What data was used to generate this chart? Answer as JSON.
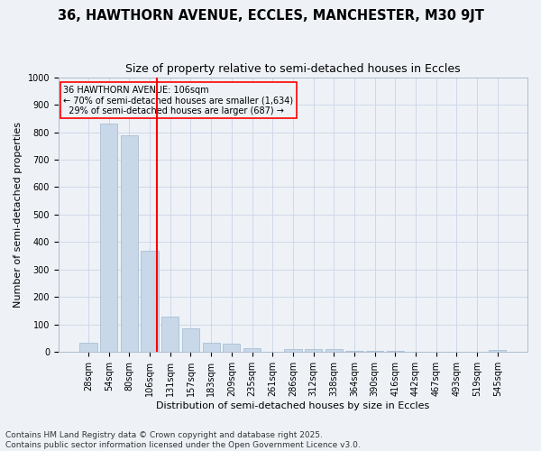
{
  "title": "36, HAWTHORN AVENUE, ECCLES, MANCHESTER, M30 9JT",
  "subtitle": "Size of property relative to semi-detached houses in Eccles",
  "xlabel": "Distribution of semi-detached houses by size in Eccles",
  "ylabel": "Number of semi-detached properties",
  "categories": [
    "28sqm",
    "54sqm",
    "80sqm",
    "106sqm",
    "131sqm",
    "157sqm",
    "183sqm",
    "209sqm",
    "235sqm",
    "261sqm",
    "286sqm",
    "312sqm",
    "338sqm",
    "364sqm",
    "390sqm",
    "416sqm",
    "442sqm",
    "467sqm",
    "493sqm",
    "519sqm",
    "545sqm"
  ],
  "values": [
    35,
    830,
    790,
    370,
    128,
    85,
    35,
    30,
    14,
    0,
    12,
    12,
    12,
    5,
    5,
    4,
    0,
    0,
    0,
    0,
    7
  ],
  "bar_color": "#c8d8e8",
  "bar_edge_color": "#a0b8d0",
  "grid_color": "#d0d8e8",
  "subject_line_idx": 3,
  "subject_label": "36 HAWTHORN AVENUE: 106sqm",
  "pct_smaller": "70% of semi-detached houses are smaller (1,634)",
  "pct_larger": "29% of semi-detached houses are larger (687)",
  "vline_color": "red",
  "annotation_box_edge_color": "red",
  "ylim": [
    0,
    1000
  ],
  "yticks": [
    0,
    100,
    200,
    300,
    400,
    500,
    600,
    700,
    800,
    900,
    1000
  ],
  "footer_line1": "Contains HM Land Registry data © Crown copyright and database right 2025.",
  "footer_line2": "Contains public sector information licensed under the Open Government Licence v3.0.",
  "title_fontsize": 10.5,
  "subtitle_fontsize": 9,
  "axis_label_fontsize": 8,
  "tick_fontsize": 7,
  "footer_fontsize": 6.5,
  "annot_fontsize": 7,
  "background_color": "#eef2f7"
}
